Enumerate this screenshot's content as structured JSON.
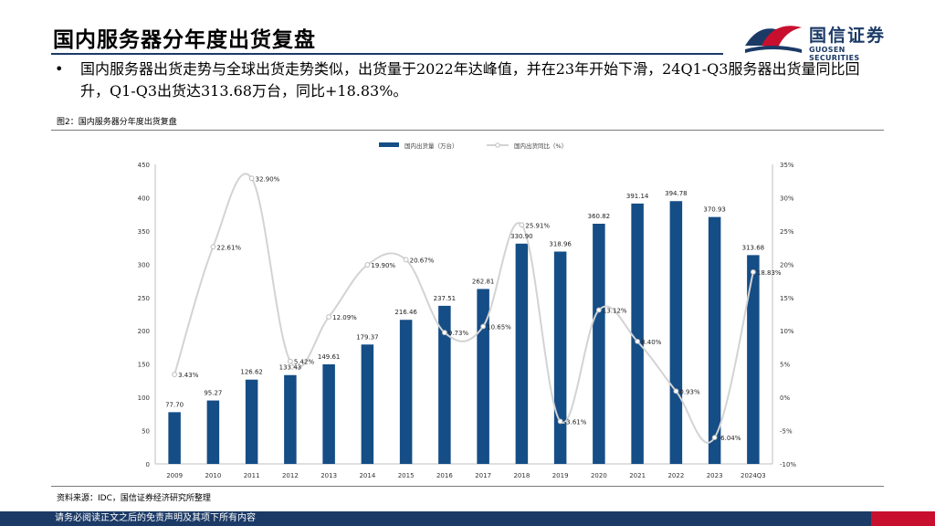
{
  "page": {
    "title": "国内服务器分年度出货复盘",
    "bullet_symbol": "•",
    "bullet_text": "国内服务器出货走势与全球出货走势类似，出货量于2022年达峰值，并在23年开始下滑，24Q1-Q3服务器出货量同比回升，Q1-Q3出货达313.68万台，同比+18.83%。",
    "figure_caption": "图2：国内服务器分年度出货复盘",
    "source": "资料来源：IDC，国信证券经济研究所整理",
    "footer": "请务必阅读正文之后的免责声明及其项下所有内容"
  },
  "logo": {
    "name_cn": "国信证券",
    "name_en": "GUOSEN SECURITIES"
  },
  "colors": {
    "bar": "#154d86",
    "line": "#d3d3d3",
    "title_rule": "#1b3a66",
    "footer": "#1b3a66",
    "logo_red": "#c8102e"
  },
  "chart_data": {
    "type": "bar",
    "categories": [
      "2009",
      "2010",
      "2011",
      "2012",
      "2013",
      "2014",
      "2015",
      "2016",
      "2017",
      "2018",
      "2019",
      "2020",
      "2021",
      "2022",
      "2023",
      "2024Q3"
    ],
    "series": [
      {
        "name": "国内出货量（万台）",
        "type": "bar",
        "axis": "left",
        "values": [
          77.7,
          95.27,
          126.62,
          133.43,
          149.61,
          179.37,
          216.46,
          237.51,
          262.81,
          330.9,
          318.96,
          360.82,
          391.14,
          394.78,
          370.93,
          313.68
        ],
        "labels": [
          "77.70",
          "95.27",
          "126.62",
          "133.43",
          "149.61",
          "179.37",
          "216.46",
          "237.51",
          "262.81",
          "330.90",
          "318.96",
          "360.82",
          "391.14",
          "394.78",
          "370.93",
          "313.68"
        ]
      },
      {
        "name": "国内出货同比（%）",
        "type": "line",
        "axis": "right",
        "values": [
          3.43,
          22.61,
          32.9,
          5.42,
          12.09,
          19.9,
          20.67,
          9.73,
          10.65,
          25.91,
          -3.61,
          13.12,
          8.4,
          0.93,
          -6.04,
          18.83
        ],
        "labels": [
          "3.43%",
          "22.61%",
          "32.90%",
          "5.42%",
          "12.09%",
          "19.90%",
          "20.67%",
          "9.73%",
          "10.65%",
          "25.91%",
          "-3.61%",
          "13.12%",
          "8.40%",
          "0.93%",
          "-6.04%",
          "18.83%"
        ]
      }
    ],
    "y_left": {
      "min": 0,
      "max": 450,
      "ticks": [
        "0",
        "50",
        "100",
        "150",
        "200",
        "250",
        "300",
        "350",
        "400",
        "450"
      ]
    },
    "y_right": {
      "min": -10,
      "max": 35,
      "ticks": [
        "-10%",
        "-5%",
        "0%",
        "5%",
        "10%",
        "15%",
        "20%",
        "25%",
        "30%",
        "35%"
      ]
    },
    "legend_position": "top-center",
    "grid": false
  }
}
